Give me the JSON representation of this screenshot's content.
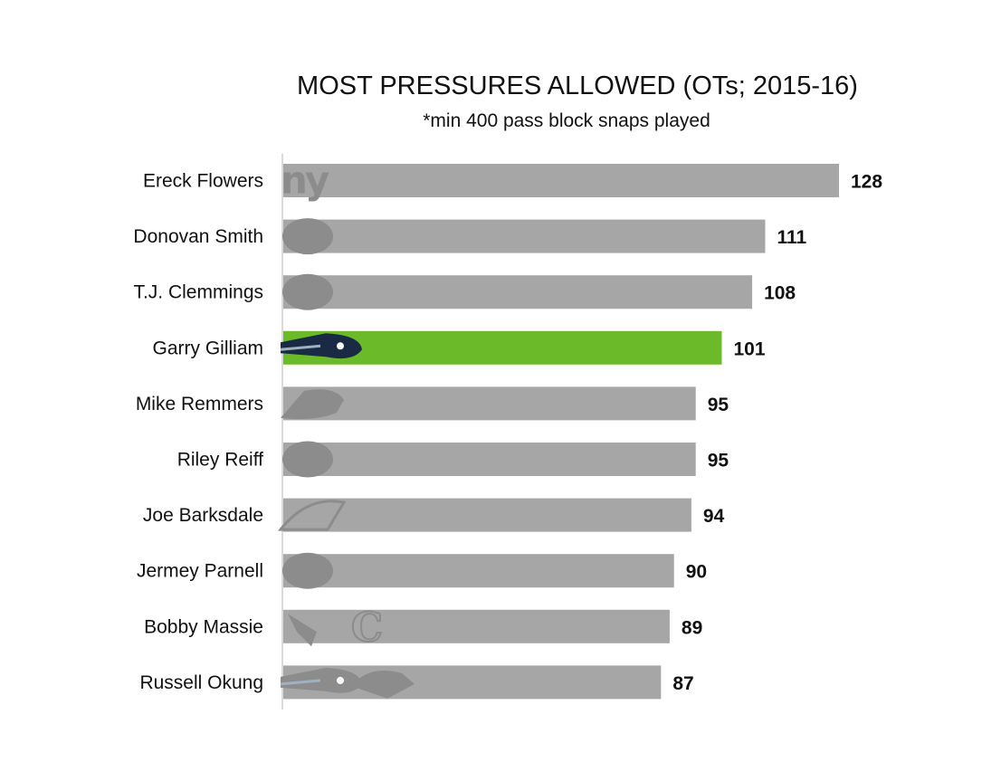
{
  "chart_data": {
    "type": "bar",
    "orientation": "horizontal",
    "title": "MOST PRESSURES ALLOWED (OTs; 2015-16)",
    "subtitle": "*min 400 pass block snaps played",
    "xlim": [
      0,
      128
    ],
    "grid": false,
    "legend": "none",
    "colors": {
      "default": "#a6a6a6",
      "highlight": "#6aba2a",
      "logo": "#8c8c8c"
    },
    "categories": [
      "Ereck Flowers",
      "Donovan Smith",
      "T.J. Clemmings",
      "Garry Gilliam",
      "Mike Remmers",
      "Riley Reiff",
      "Joe Barksdale",
      "Jermey Parnell",
      "Bobby Massie",
      "Russell Okung"
    ],
    "values": [
      128,
      111,
      108,
      101,
      95,
      95,
      94,
      90,
      89,
      87
    ],
    "value_labels": [
      "128",
      "111",
      "108",
      "101",
      "95",
      "95",
      "94",
      "90",
      "89",
      "87"
    ],
    "highlight_index": 3,
    "team_logos": [
      [
        "giants-logo-icon"
      ],
      [
        "buccaneers-logo-icon"
      ],
      [
        "vikings-logo-icon"
      ],
      [
        "seahawks-logo-icon"
      ],
      [
        "panthers-logo-icon"
      ],
      [
        "lions-logo-icon"
      ],
      [
        "chargers-logo-icon"
      ],
      [
        "jaguars-logo-icon"
      ],
      [
        "cardinals-logo-icon",
        "bears-logo-icon"
      ],
      [
        "seahawks-logo-icon",
        "broncos-logo-icon"
      ]
    ]
  }
}
